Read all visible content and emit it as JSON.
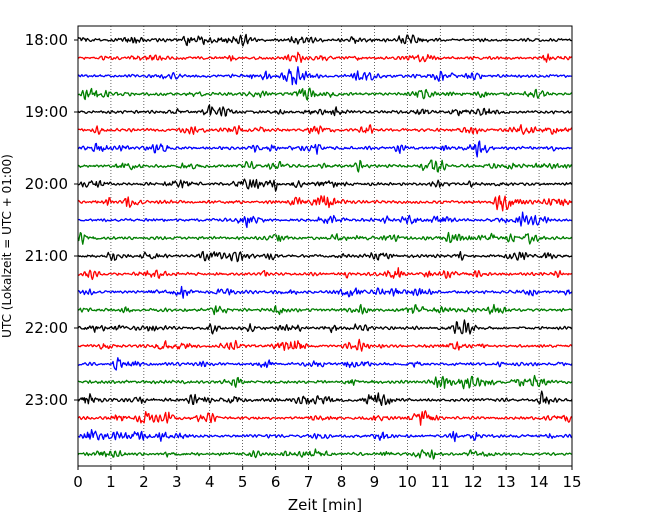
{
  "chart_data": {
    "type": "line",
    "title": "",
    "xlabel": "Zeit  [min]",
    "ylabel": "UTC (Lokalzeit = UTC + 01:00)",
    "xlim": [
      0,
      15
    ],
    "x_ticks": [
      "0",
      "1",
      "2",
      "3",
      "4",
      "5",
      "6",
      "7",
      "8",
      "9",
      "10",
      "11",
      "12",
      "13",
      "14",
      "15"
    ],
    "y_ticks": [
      "18:00",
      "19:00",
      "20:00",
      "21:00",
      "22:00",
      "23:00"
    ],
    "grid": "vertical dotted lines at each minute",
    "trace_interval_minutes": 15,
    "trace_colors": [
      "#000000",
      "#ff0000",
      "#0000ff",
      "#007f00"
    ],
    "series": [
      {
        "start": "18:00",
        "color": "#000000"
      },
      {
        "start": "18:15",
        "color": "#ff0000"
      },
      {
        "start": "18:30",
        "color": "#0000ff"
      },
      {
        "start": "18:45",
        "color": "#007f00"
      },
      {
        "start": "19:00",
        "color": "#000000"
      },
      {
        "start": "19:15",
        "color": "#ff0000"
      },
      {
        "start": "19:30",
        "color": "#0000ff"
      },
      {
        "start": "19:45",
        "color": "#007f00"
      },
      {
        "start": "20:00",
        "color": "#000000"
      },
      {
        "start": "20:15",
        "color": "#ff0000"
      },
      {
        "start": "20:30",
        "color": "#0000ff"
      },
      {
        "start": "20:45",
        "color": "#007f00"
      },
      {
        "start": "21:00",
        "color": "#000000"
      },
      {
        "start": "21:15",
        "color": "#ff0000"
      },
      {
        "start": "21:30",
        "color": "#0000ff"
      },
      {
        "start": "21:45",
        "color": "#007f00"
      },
      {
        "start": "22:00",
        "color": "#000000"
      },
      {
        "start": "22:15",
        "color": "#ff0000"
      },
      {
        "start": "22:30",
        "color": "#0000ff"
      },
      {
        "start": "22:45",
        "color": "#007f00"
      },
      {
        "start": "23:00",
        "color": "#000000"
      },
      {
        "start": "23:15",
        "color": "#ff0000"
      },
      {
        "start": "23:30",
        "color": "#0000ff"
      },
      {
        "start": "23:45",
        "color": "#007f00"
      }
    ]
  }
}
